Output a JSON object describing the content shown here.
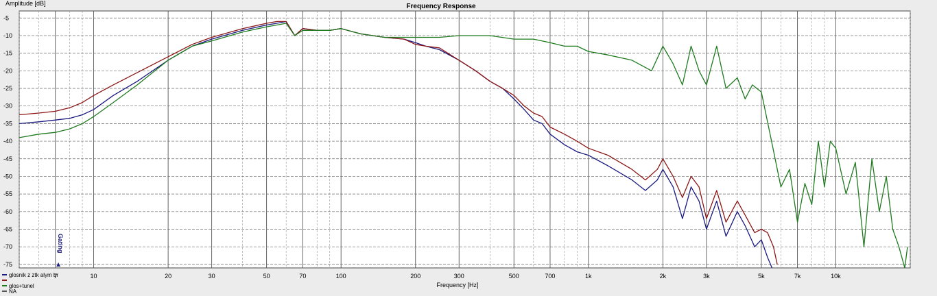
{
  "chart_data": {
    "type": "line",
    "title": "Frequency Response",
    "xlabel": "Frequency [Hz]",
    "ylabel": "Amplitude [dB]",
    "xscale": "log",
    "xlim": [
      5,
      20000
    ],
    "ylim": [
      -76,
      -3
    ],
    "grid": true,
    "legend_position": "bottom-left",
    "x_ticks": [
      7,
      10,
      20,
      30,
      50,
      70,
      100,
      200,
      300,
      500,
      700,
      1000,
      2000,
      3000,
      5000,
      7000,
      10000
    ],
    "x_tick_labels": [
      "7",
      "10",
      "20",
      "30",
      "50",
      "70",
      "100",
      "200",
      "300",
      "500",
      "700",
      "1k",
      "2k",
      "3k",
      "5k",
      "7k",
      "10k"
    ],
    "y_ticks": [
      -5,
      -10,
      -15,
      -20,
      -25,
      -30,
      -35,
      -40,
      -45,
      -50,
      -55,
      -60,
      -65,
      -70,
      -75
    ],
    "y_tick_labels": [
      "-5",
      "-10",
      "-15",
      "-20",
      "-25",
      "-30",
      "-35",
      "-40",
      "-45",
      "-50",
      "-55",
      "-60",
      "-65",
      "-70",
      "-75"
    ],
    "annotations": [
      {
        "text": "Gating",
        "x": 7.2,
        "color": "#20207f"
      }
    ],
    "series": [
      {
        "name": "glosnik z ztk alym br",
        "color": "#1a1a80",
        "x": [
          5,
          6,
          7,
          8,
          9,
          10,
          12,
          15,
          20,
          25,
          30,
          40,
          50,
          55,
          60,
          65,
          70,
          80,
          90,
          100,
          120,
          150,
          180,
          200,
          220,
          250,
          300,
          350,
          400,
          450,
          500,
          550,
          600,
          650,
          700,
          800,
          900,
          1000,
          1200,
          1500,
          1700,
          1900,
          2000,
          2200,
          2400,
          2600,
          2800,
          3000,
          3300,
          3600,
          4000,
          4300,
          4700,
          5000,
          5300,
          5600
        ],
        "y": [
          -35,
          -34.5,
          -34,
          -33.5,
          -32.5,
          -31,
          -27,
          -23,
          -17,
          -13,
          -11,
          -8.5,
          -7,
          -6.5,
          -6,
          -10,
          -8,
          -8.5,
          -8.5,
          -8,
          -9.5,
          -10.5,
          -11,
          -12,
          -13,
          -14,
          -17,
          -20,
          -23,
          -25,
          -28,
          -31,
          -34,
          -35,
          -38,
          -41,
          -43,
          -44,
          -47,
          -51,
          -54,
          -51,
          -48,
          -53,
          -62,
          -53,
          -57,
          -65,
          -57,
          -67,
          -60,
          -64,
          -70,
          -68,
          -73,
          -77
        ]
      },
      {
        "name": "",
        "color": "#8c1616",
        "x": [
          5,
          6,
          7,
          8,
          9,
          10,
          12,
          15,
          20,
          25,
          30,
          40,
          50,
          55,
          60,
          65,
          70,
          80,
          90,
          100,
          120,
          150,
          180,
          200,
          220,
          250,
          300,
          350,
          400,
          450,
          500,
          550,
          600,
          650,
          700,
          800,
          900,
          1000,
          1200,
          1500,
          1700,
          1900,
          2000,
          2200,
          2400,
          2600,
          2800,
          3000,
          3300,
          3600,
          4000,
          4300,
          4700,
          5000,
          5300,
          5600,
          5800
        ],
        "y": [
          -32.5,
          -32,
          -31.5,
          -30.5,
          -29,
          -27,
          -24,
          -20.5,
          -16,
          -12.5,
          -10.5,
          -8,
          -6.5,
          -6,
          -6,
          -10,
          -8,
          -8.5,
          -8.5,
          -8,
          -9.5,
          -10.5,
          -11,
          -12.5,
          -13,
          -13.5,
          -17,
          -20,
          -23,
          -25,
          -27,
          -30,
          -32,
          -33,
          -36,
          -38,
          -40,
          -42,
          -44,
          -48,
          -51,
          -48,
          -45,
          -50,
          -56,
          -50,
          -53,
          -62,
          -54,
          -63,
          -57,
          -61,
          -66,
          -65,
          -66,
          -70,
          -75
        ]
      },
      {
        "name": "glos+tunel",
        "color": "#1e7a1e",
        "x": [
          5,
          6,
          7,
          8,
          9,
          10,
          12,
          15,
          20,
          25,
          30,
          40,
          50,
          55,
          60,
          65,
          70,
          80,
          90,
          100,
          120,
          150,
          200,
          250,
          300,
          400,
          500,
          600,
          700,
          800,
          900,
          1000,
          1200,
          1500,
          1800,
          2000,
          2200,
          2400,
          2600,
          2800,
          3000,
          3300,
          3600,
          4000,
          4300,
          4600,
          5000,
          5500,
          6000,
          6500,
          7000,
          7500,
          8000,
          8500,
          9000,
          9500,
          10000,
          11000,
          12000,
          13000,
          14000,
          15000,
          16000,
          17000,
          18000,
          19000,
          19500
        ],
        "y": [
          -39,
          -38,
          -37.5,
          -36.5,
          -35,
          -33,
          -29,
          -24,
          -17,
          -13,
          -11.5,
          -9,
          -7.5,
          -7,
          -6.5,
          -10,
          -8.5,
          -8.5,
          -8.5,
          -8,
          -9.5,
          -10.5,
          -10.5,
          -10.5,
          -10,
          -10,
          -11,
          -11,
          -12,
          -13,
          -13,
          -14.5,
          -15.5,
          -17,
          -20,
          -13,
          -18,
          -24,
          -13,
          -20,
          -24,
          -13,
          -25,
          -22,
          -28,
          -24,
          -26,
          -40,
          -53,
          -48,
          -63,
          -52,
          -58,
          -40,
          -53,
          -40,
          -42,
          -55,
          -46,
          -70,
          -45,
          -60,
          -50,
          -65,
          -70,
          -76,
          -70
        ]
      }
    ]
  },
  "legend": [
    {
      "label": "glosnik z ztk alym br",
      "color": "#1a1a80"
    },
    {
      "label": "",
      "color": "#8c1616"
    },
    {
      "label": "glos+tunel",
      "color": "#1e7a1e"
    },
    {
      "label": "NA",
      "color": "#555555"
    }
  ]
}
